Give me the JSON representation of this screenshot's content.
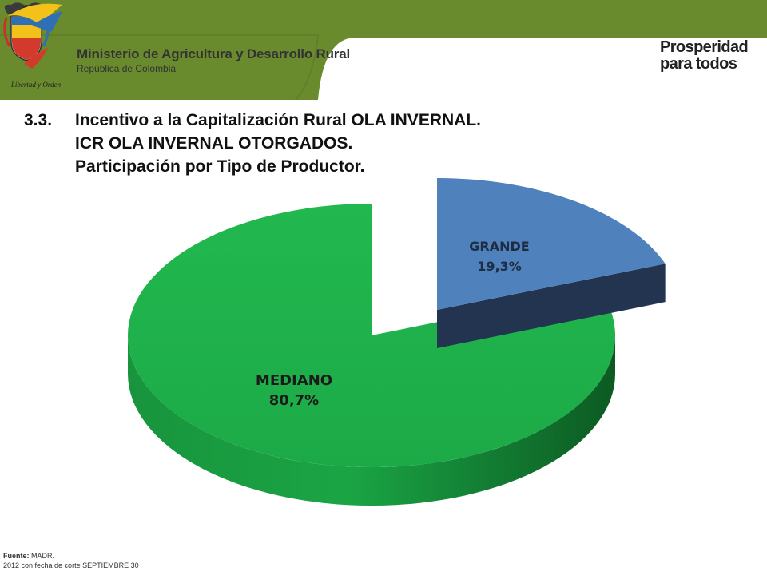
{
  "header": {
    "ministry_name": "Ministerio de Agricultura y Desarrollo Rural",
    "country": "República de Colombia",
    "crest_motto": "Libertad y Orden",
    "brand_line1": "Prosperidad",
    "brand_line2": "para todos",
    "colors": {
      "band": "#6a8a2e",
      "band_dark": "#587524"
    }
  },
  "title": {
    "number": "3.3.",
    "line1": "Incentivo a la Capitalización Rural OLA INVERNAL.",
    "line2": "ICR OLA INVERNAL OTORGADOS.",
    "line3": "Participación por Tipo de Productor."
  },
  "chart_data": {
    "type": "pie",
    "style": "3d-exploded",
    "slices": [
      {
        "label": "GRANDE",
        "value": 19.3,
        "display": "19,3%",
        "color": "#4f81bd",
        "side_color": "#22344f"
      },
      {
        "label": "MEDIANO",
        "value": 80.7,
        "display": "80,7%",
        "color": "#1fb14a",
        "side_color": "#12772f"
      }
    ]
  },
  "footer": {
    "source_label": "Fuente:",
    "source_value": "MADR.",
    "note": "2012 con fecha de corte SEPTIEMBRE 30"
  }
}
